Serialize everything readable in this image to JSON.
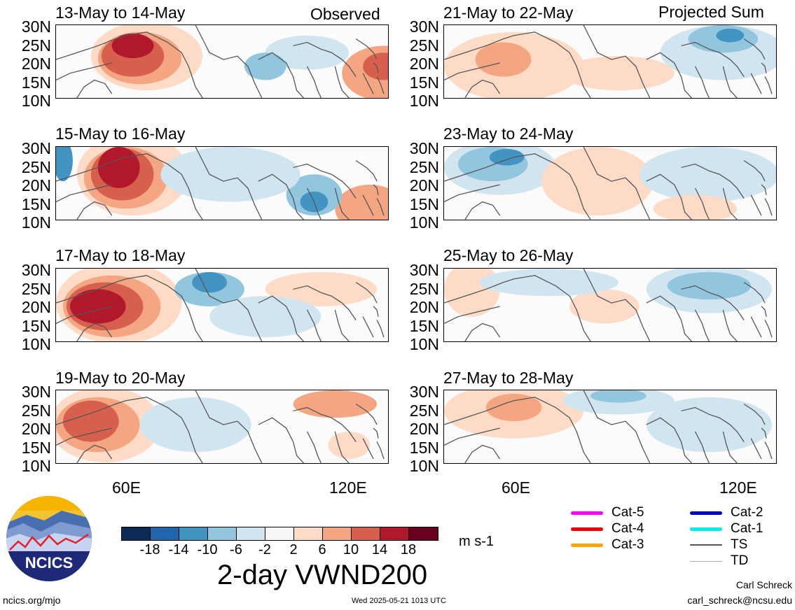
{
  "headers": {
    "left": "Observed",
    "right": "Projected Sum"
  },
  "lat_labels": [
    "30N",
    "25N",
    "20N",
    "15N",
    "10N"
  ],
  "lon_labels": [
    "60E",
    "120E"
  ],
  "panels_left": [
    {
      "title": "13-May to 14-May"
    },
    {
      "title": "15-May to 16-May"
    },
    {
      "title": "17-May to 18-May"
    },
    {
      "title": "19-May to 20-May"
    }
  ],
  "panels_right": [
    {
      "title": "21-May to 22-May"
    },
    {
      "title": "23-May to 24-May"
    },
    {
      "title": "25-May to 26-May"
    },
    {
      "title": "27-May to 28-May"
    }
  ],
  "colorbar": {
    "colors": [
      "#0b2a55",
      "#2166ac",
      "#4393c3",
      "#92c5de",
      "#d1e5f0",
      "#f7f7f7",
      "#fddbc7",
      "#f4a582",
      "#d6604d",
      "#b2182b",
      "#67001f"
    ],
    "ticks": [
      "-18",
      "-14",
      "-10",
      "-6",
      "-2",
      "2",
      "6",
      "10",
      "14",
      "18"
    ],
    "units": "m s-1"
  },
  "figure_title": "2-day VWND200",
  "legend": [
    {
      "label": "Cat-5",
      "color": "#ff00ff",
      "weight": "thick"
    },
    {
      "label": "Cat-4",
      "color": "#ee0000",
      "weight": "thick"
    },
    {
      "label": "Cat-3",
      "color": "#ffa500",
      "weight": "thick"
    },
    {
      "label": "Cat-2",
      "color": "#0000cc",
      "weight": "thick"
    },
    {
      "label": "Cat-1",
      "color": "#00eeee",
      "weight": "thick"
    },
    {
      "label": "TS",
      "color": "#555555",
      "weight": "medium"
    },
    {
      "label": "TD",
      "color": "#aaaaaa",
      "weight": "thin"
    }
  ],
  "logo": {
    "text": "NCICS"
  },
  "footer": {
    "url": "ncics.org/mjo",
    "timestamp": "Wed 2025-05-21 1013 UTC",
    "author": "Carl Schreck",
    "email": "carl_schreck@ncsu.edu"
  }
}
